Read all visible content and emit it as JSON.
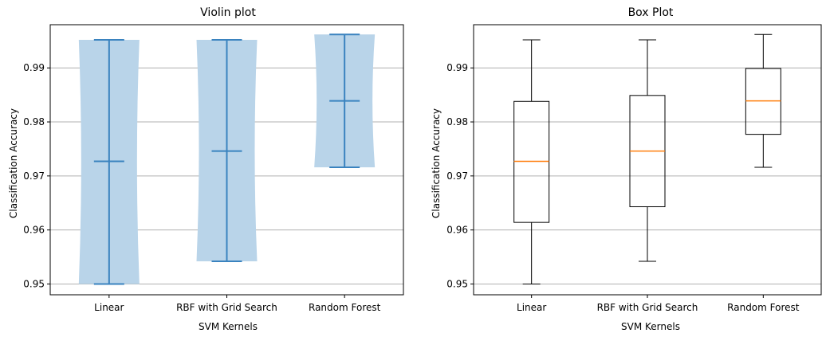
{
  "chart_data": [
    {
      "type": "violin",
      "title": "Violin plot",
      "xlabel": "SVM Kernels",
      "ylabel": "Classification Accuracy",
      "categories": [
        "Linear",
        "RBF with Grid Search",
        "Random Forest"
      ],
      "yticks": [
        "0.95",
        "0.96",
        "0.97",
        "0.98",
        "0.99"
      ],
      "ylim": [
        0.948,
        0.998
      ],
      "grid": "y",
      "colors": {
        "body": "#b9d4e9",
        "lines": "#3a83bf"
      },
      "series": [
        {
          "category": "Linear",
          "min": 0.95,
          "mean": 0.9727,
          "max": 0.9952
        },
        {
          "category": "RBF with Grid Search",
          "min": 0.9542,
          "mean": 0.9746,
          "max": 0.9952
        },
        {
          "category": "Random Forest",
          "min": 0.9716,
          "mean": 0.9839,
          "max": 0.9962
        }
      ]
    },
    {
      "type": "box",
      "title": "Box Plot",
      "xlabel": "SVM Kernels",
      "ylabel": "Classification Accuracy",
      "categories": [
        "Linear",
        "RBF with Grid Search",
        "Random Forest"
      ],
      "yticks": [
        "0.95",
        "0.96",
        "0.97",
        "0.98",
        "0.99"
      ],
      "ylim": [
        0.948,
        0.998
      ],
      "grid": "y",
      "colors": {
        "box": "#000000",
        "median": "#ff7f0e"
      },
      "series": [
        {
          "category": "Linear",
          "whisker_low": 0.95,
          "q1": 0.9614,
          "median": 0.9727,
          "q3": 0.9838,
          "whisker_high": 0.9952
        },
        {
          "category": "RBF with Grid Search",
          "whisker_low": 0.9542,
          "q1": 0.9643,
          "median": 0.9746,
          "q3": 0.9849,
          "whisker_high": 0.9952
        },
        {
          "category": "Random Forest",
          "whisker_low": 0.9716,
          "q1": 0.9777,
          "median": 0.9839,
          "q3": 0.9899,
          "whisker_high": 0.9962
        }
      ]
    }
  ]
}
